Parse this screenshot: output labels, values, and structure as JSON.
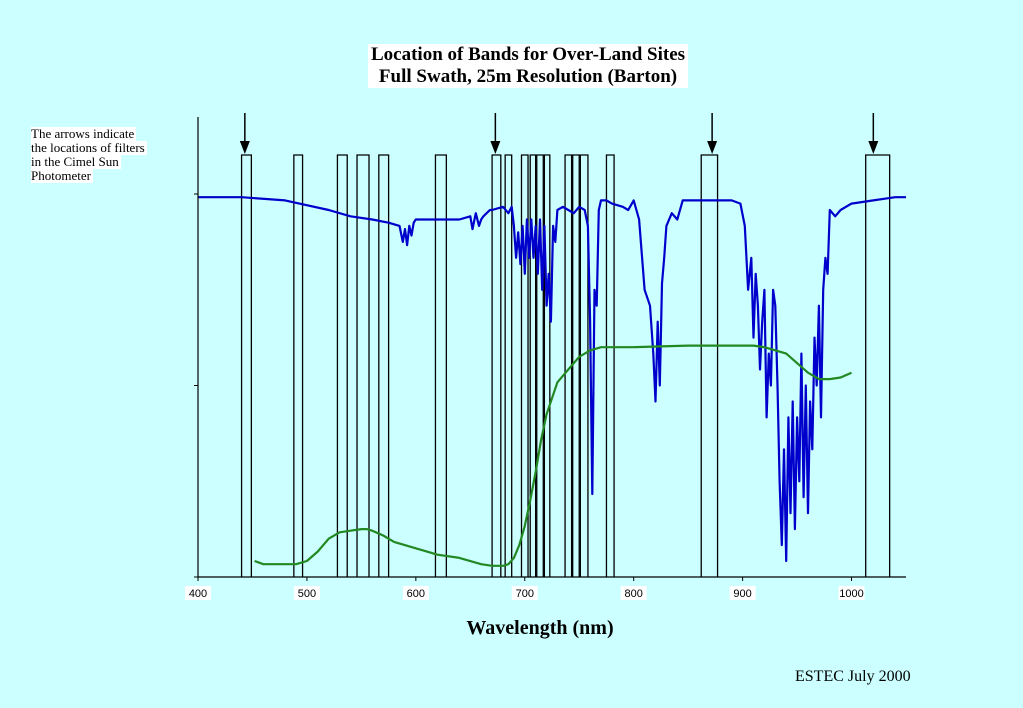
{
  "chart_data": {
    "type": "line",
    "title": "Location of Bands for Over-Land Sites",
    "subtitle": "Full Swath, 25m Resolution (Barton)",
    "xlabel": "Wavelength (nm)",
    "ylabel": "",
    "xlim": [
      400,
      1050
    ],
    "ylim": [
      0,
      1.2
    ],
    "xticks": [
      "400",
      "500",
      "600",
      "700",
      "800",
      "900",
      "1000"
    ],
    "xtick_values": [
      400,
      500,
      600,
      700,
      800,
      900,
      1000
    ],
    "ytick_values": [
      0,
      0.6,
      1.2
    ],
    "grid": false,
    "series": [
      {
        "color": "#0000cc",
        "x": [
          400,
          440,
          480,
          520,
          540,
          560,
          575,
          585,
          588,
          590,
          592,
          594,
          596,
          598,
          600,
          620,
          640,
          650,
          652,
          655,
          658,
          660,
          662,
          665,
          668,
          670,
          680,
          685,
          688,
          690,
          692,
          694,
          696,
          698,
          700,
          702,
          704,
          706,
          708,
          710,
          712,
          714,
          716,
          718,
          720,
          722,
          724,
          726,
          728,
          730,
          735,
          740,
          745,
          750,
          755,
          758,
          760,
          762,
          764,
          766,
          768,
          770,
          775,
          780,
          790,
          795,
          800,
          805,
          810,
          815,
          818,
          820,
          822,
          824,
          826,
          828,
          830,
          835,
          840,
          845,
          850,
          860,
          870,
          880,
          890,
          898,
          902,
          905,
          908,
          910,
          912,
          914,
          916,
          918,
          920,
          922,
          924,
          926,
          928,
          930,
          932,
          934,
          936,
          938,
          940,
          942,
          944,
          946,
          948,
          950,
          952,
          954,
          956,
          958,
          960,
          962,
          964,
          966,
          968,
          970,
          972,
          974,
          976,
          978,
          980,
          985,
          990,
          1000,
          1020,
          1040,
          1050
        ],
        "y": [
          1.19,
          1.19,
          1.18,
          1.15,
          1.13,
          1.12,
          1.11,
          1.1,
          1.05,
          1.09,
          1.04,
          1.1,
          1.07,
          1.11,
          1.12,
          1.12,
          1.12,
          1.13,
          1.09,
          1.14,
          1.1,
          1.12,
          1.13,
          1.14,
          1.15,
          1.15,
          1.16,
          1.14,
          1.16,
          1.1,
          1.0,
          1.08,
          0.98,
          1.1,
          0.95,
          1.12,
          1.0,
          1.12,
          1.0,
          1.1,
          0.95,
          1.12,
          0.9,
          1.1,
          0.85,
          0.95,
          0.8,
          1.1,
          1.05,
          1.15,
          1.16,
          1.15,
          1.14,
          1.16,
          1.15,
          1.1,
          0.8,
          0.26,
          0.9,
          0.85,
          1.15,
          1.18,
          1.18,
          1.17,
          1.16,
          1.15,
          1.18,
          1.12,
          0.9,
          0.85,
          0.7,
          0.55,
          0.8,
          0.6,
          0.92,
          1.0,
          1.1,
          1.14,
          1.12,
          1.18,
          1.18,
          1.18,
          1.18,
          1.18,
          1.18,
          1.17,
          1.1,
          0.9,
          1.0,
          0.75,
          0.95,
          0.85,
          0.65,
          0.8,
          0.9,
          0.5,
          0.7,
          0.6,
          0.9,
          0.85,
          0.6,
          0.3,
          0.1,
          0.4,
          0.05,
          0.5,
          0.2,
          0.55,
          0.15,
          0.5,
          0.3,
          0.7,
          0.25,
          0.6,
          0.2,
          0.55,
          0.4,
          0.75,
          0.6,
          0.85,
          0.5,
          0.9,
          1.0,
          0.95,
          1.15,
          1.13,
          1.15,
          1.17,
          1.18,
          1.19,
          1.19
        ]
      },
      {
        "color": "#228822",
        "x": [
          452,
          460,
          480,
          490,
          500,
          510,
          520,
          530,
          540,
          550,
          555,
          560,
          570,
          580,
          600,
          620,
          640,
          660,
          670,
          680,
          685,
          690,
          695,
          700,
          705,
          710,
          715,
          720,
          730,
          740,
          750,
          760,
          770,
          780,
          800,
          850,
          900,
          910,
          920,
          940,
          960,
          970,
          980,
          990,
          1000
        ],
        "y": [
          0.05,
          0.04,
          0.04,
          0.04,
          0.05,
          0.08,
          0.12,
          0.14,
          0.145,
          0.15,
          0.15,
          0.145,
          0.13,
          0.11,
          0.09,
          0.07,
          0.06,
          0.04,
          0.035,
          0.035,
          0.04,
          0.06,
          0.1,
          0.16,
          0.24,
          0.33,
          0.43,
          0.51,
          0.61,
          0.65,
          0.69,
          0.71,
          0.72,
          0.72,
          0.72,
          0.725,
          0.725,
          0.725,
          0.72,
          0.7,
          0.64,
          0.62,
          0.62,
          0.625,
          0.64
        ]
      }
    ],
    "bands": [
      [
        440,
        449
      ],
      [
        488,
        496
      ],
      [
        528,
        537
      ],
      [
        546,
        557
      ],
      [
        566,
        575
      ],
      [
        618,
        628
      ],
      [
        670,
        678
      ],
      [
        682,
        688
      ],
      [
        697,
        703
      ],
      [
        705,
        710
      ],
      [
        711,
        717
      ],
      [
        718,
        723
      ],
      [
        737,
        743
      ],
      [
        744,
        750
      ],
      [
        751,
        758
      ],
      [
        775,
        782
      ],
      [
        862,
        877
      ],
      [
        1013,
        1035
      ]
    ],
    "arrows": [
      443,
      673,
      872,
      1020
    ],
    "annotations": [
      "The arrows indicate",
      "the locations of filters",
      "in the Cimel Sun",
      "Photometer"
    ]
  },
  "footer": "ESTEC July 2000"
}
